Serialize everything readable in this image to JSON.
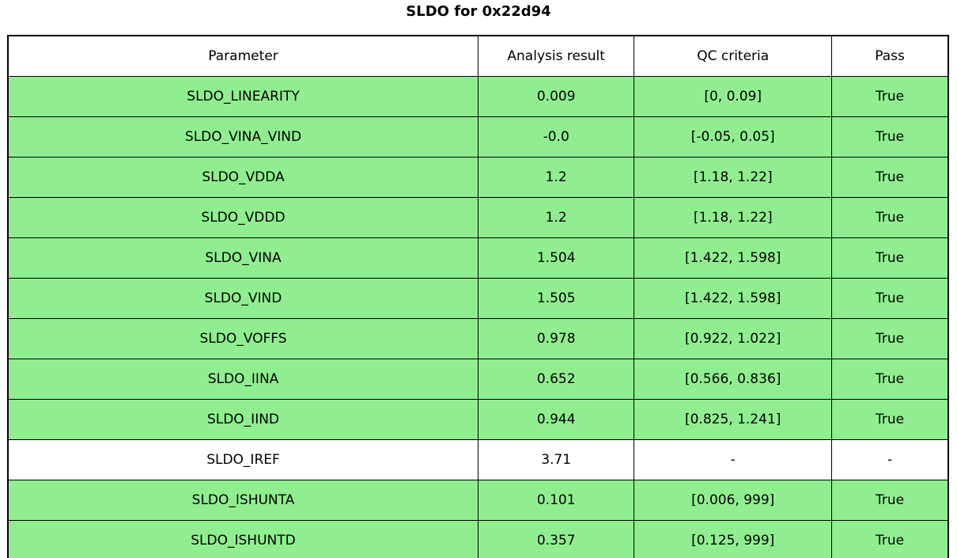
{
  "figure_title": "SLDO for 0x22d94",
  "colors": {
    "pass_row_green": "#90ee90",
    "neutral_row_white": "#ffffff",
    "border_black": "#000000"
  },
  "chart_data": {
    "type": "table",
    "title": "SLDO for 0x22d94",
    "columns": [
      "Parameter",
      "Analysis result",
      "QC criteria",
      "Pass"
    ],
    "rows": [
      {
        "parameter": "SLDO_LINEARITY",
        "result": "0.009",
        "criteria": "[0, 0.09]",
        "pass": "True",
        "status": "pass"
      },
      {
        "parameter": "SLDO_VINA_VIND",
        "result": "-0.0",
        "criteria": "[-0.05, 0.05]",
        "pass": "True",
        "status": "pass"
      },
      {
        "parameter": "SLDO_VDDA",
        "result": "1.2",
        "criteria": "[1.18, 1.22]",
        "pass": "True",
        "status": "pass"
      },
      {
        "parameter": "SLDO_VDDD",
        "result": "1.2",
        "criteria": "[1.18, 1.22]",
        "pass": "True",
        "status": "pass"
      },
      {
        "parameter": "SLDO_VINA",
        "result": "1.504",
        "criteria": "[1.422, 1.598]",
        "pass": "True",
        "status": "pass"
      },
      {
        "parameter": "SLDO_VIND",
        "result": "1.505",
        "criteria": "[1.422, 1.598]",
        "pass": "True",
        "status": "pass"
      },
      {
        "parameter": "SLDO_VOFFS",
        "result": "0.978",
        "criteria": "[0.922, 1.022]",
        "pass": "True",
        "status": "pass"
      },
      {
        "parameter": "SLDO_IINA",
        "result": "0.652",
        "criteria": "[0.566, 0.836]",
        "pass": "True",
        "status": "pass"
      },
      {
        "parameter": "SLDO_IIND",
        "result": "0.944",
        "criteria": "[0.825, 1.241]",
        "pass": "True",
        "status": "pass"
      },
      {
        "parameter": "SLDO_IREF",
        "result": "3.71",
        "criteria": "-",
        "pass": "-",
        "status": "none"
      },
      {
        "parameter": "SLDO_ISHUNTA",
        "result": "0.101",
        "criteria": "[0.006, 999]",
        "pass": "True",
        "status": "pass"
      },
      {
        "parameter": "SLDO_ISHUNTD",
        "result": "0.357",
        "criteria": "[0.125, 999]",
        "pass": "True",
        "status": "pass"
      }
    ]
  }
}
